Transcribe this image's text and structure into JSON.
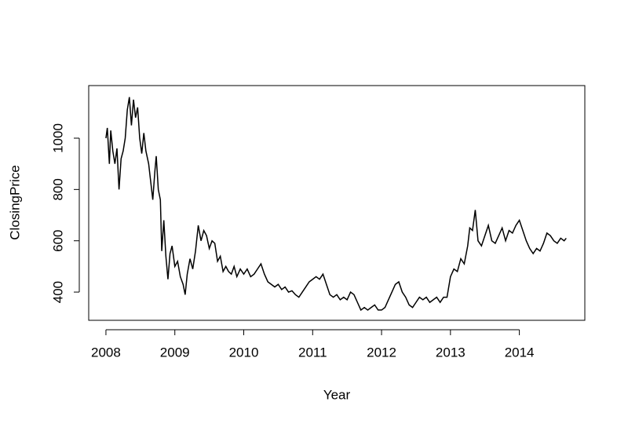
{
  "chart_data": {
    "type": "line",
    "x_label": "Year",
    "y_label": "ClosingPrice",
    "color": "#000000",
    "xlim": [
      2007.75,
      2014.95
    ],
    "ylim": [
      290,
      1205
    ],
    "xticks": [
      2008,
      2009,
      2010,
      2011,
      2012,
      2013,
      2014
    ],
    "yticks": [
      400,
      600,
      800,
      1000
    ],
    "x": [
      2008.0,
      2008.02,
      2008.05,
      2008.07,
      2008.1,
      2008.13,
      2008.16,
      2008.19,
      2008.22,
      2008.25,
      2008.28,
      2008.31,
      2008.34,
      2008.37,
      2008.4,
      2008.43,
      2008.46,
      2008.49,
      2008.52,
      2008.55,
      2008.58,
      2008.62,
      2008.65,
      2008.68,
      2008.71,
      2008.73,
      2008.76,
      2008.79,
      2008.81,
      2008.84,
      2008.87,
      2008.9,
      2008.93,
      2008.96,
      2009.0,
      2009.04,
      2009.08,
      2009.12,
      2009.15,
      2009.18,
      2009.22,
      2009.26,
      2009.3,
      2009.34,
      2009.38,
      2009.42,
      2009.46,
      2009.5,
      2009.54,
      2009.58,
      2009.62,
      2009.66,
      2009.7,
      2009.74,
      2009.78,
      2009.82,
      2009.86,
      2009.9,
      2009.95,
      2010.0,
      2010.05,
      2010.1,
      2010.15,
      2010.2,
      2010.25,
      2010.3,
      2010.35,
      2010.4,
      2010.45,
      2010.5,
      2010.55,
      2010.6,
      2010.65,
      2010.7,
      2010.75,
      2010.8,
      2010.85,
      2010.9,
      2010.95,
      2011.0,
      2011.05,
      2011.1,
      2011.15,
      2011.2,
      2011.25,
      2011.3,
      2011.35,
      2011.4,
      2011.45,
      2011.5,
      2011.55,
      2011.6,
      2011.65,
      2011.7,
      2011.75,
      2011.8,
      2011.85,
      2011.9,
      2011.95,
      2012.0,
      2012.05,
      2012.1,
      2012.15,
      2012.2,
      2012.25,
      2012.3,
      2012.35,
      2012.4,
      2012.45,
      2012.5,
      2012.55,
      2012.6,
      2012.65,
      2012.7,
      2012.75,
      2012.8,
      2012.85,
      2012.9,
      2012.95,
      2013.0,
      2013.05,
      2013.1,
      2013.15,
      2013.2,
      2013.25,
      2013.28,
      2013.32,
      2013.36,
      2013.4,
      2013.45,
      2013.5,
      2013.55,
      2013.6,
      2013.65,
      2013.7,
      2013.75,
      2013.8,
      2013.85,
      2013.9,
      2013.95,
      2014.0,
      2014.05,
      2014.1,
      2014.15,
      2014.2,
      2014.25,
      2014.3,
      2014.35,
      2014.4,
      2014.45,
      2014.5,
      2014.55,
      2014.6,
      2014.65,
      2014.68
    ],
    "values": [
      1000,
      1040,
      900,
      1030,
      950,
      900,
      960,
      800,
      920,
      950,
      1000,
      1110,
      1160,
      1050,
      1150,
      1080,
      1120,
      1000,
      940,
      1020,
      950,
      900,
      830,
      760,
      870,
      930,
      800,
      760,
      560,
      680,
      540,
      450,
      550,
      580,
      500,
      520,
      460,
      430,
      390,
      470,
      530,
      490,
      560,
      660,
      600,
      640,
      620,
      570,
      600,
      590,
      520,
      540,
      480,
      500,
      480,
      470,
      500,
      460,
      490,
      470,
      490,
      460,
      470,
      490,
      510,
      470,
      440,
      430,
      420,
      430,
      410,
      420,
      400,
      405,
      390,
      380,
      400,
      420,
      440,
      450,
      460,
      450,
      470,
      430,
      390,
      380,
      390,
      370,
      380,
      370,
      400,
      390,
      360,
      330,
      340,
      330,
      340,
      350,
      330,
      330,
      340,
      370,
      400,
      430,
      440,
      400,
      380,
      350,
      340,
      360,
      380,
      370,
      380,
      360,
      370,
      380,
      360,
      380,
      380,
      460,
      490,
      480,
      530,
      510,
      580,
      650,
      640,
      720,
      600,
      580,
      620,
      660,
      600,
      590,
      620,
      650,
      600,
      640,
      630,
      660,
      680,
      640,
      600,
      570,
      550,
      570,
      560,
      590,
      630,
      620,
      600,
      590,
      610,
      600,
      610
    ]
  }
}
